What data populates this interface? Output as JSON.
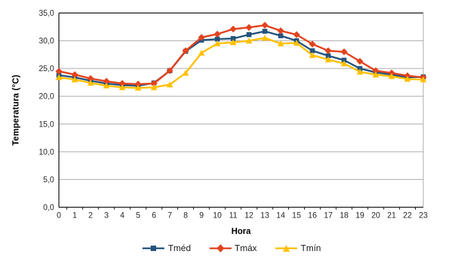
{
  "chart_data": {
    "type": "line",
    "x_categories": [
      "0",
      "1",
      "2",
      "3",
      "4",
      "5",
      "6",
      "7",
      "8",
      "9",
      "10",
      "11",
      "12",
      "13",
      "14",
      "15",
      "16",
      "17",
      "18",
      "19",
      "20",
      "21",
      "22",
      "23"
    ],
    "xlabel": "Hora",
    "ylabel": "Temperatura (°C)",
    "ylim": [
      0,
      35
    ],
    "y_tick_step": 5,
    "y_tick_labels": [
      "0,0",
      "5,0",
      "10,0",
      "15,0",
      "20,0",
      "25,0",
      "30,0",
      "35,0"
    ],
    "grid": true,
    "legend_position": "bottom",
    "series": [
      {
        "name": "Tméd",
        "marker": "square",
        "color": "#25537D",
        "values": [
          23.8,
          23.4,
          22.8,
          22.3,
          22.0,
          21.9,
          22.4,
          24.6,
          28.1,
          30.1,
          30.3,
          30.4,
          31.1,
          31.7,
          30.9,
          30.0,
          28.2,
          27.3,
          26.5,
          25.0,
          24.3,
          23.9,
          23.4,
          23.5
        ]
      },
      {
        "name": "Tmáx",
        "marker": "diamond",
        "color": "#E2431E",
        "values": [
          24.5,
          23.9,
          23.2,
          22.7,
          22.3,
          22.2,
          22.3,
          24.6,
          28.2,
          30.6,
          31.2,
          32.1,
          32.4,
          32.8,
          31.8,
          31.1,
          29.4,
          28.2,
          28.0,
          26.3,
          24.6,
          24.2,
          23.7,
          23.4
        ]
      },
      {
        "name": "Tmín",
        "marker": "triangle",
        "color": "#FFC000",
        "values": [
          23.4,
          23.0,
          22.4,
          21.9,
          21.6,
          21.5,
          21.6,
          22.1,
          24.2,
          27.8,
          29.5,
          29.7,
          30.0,
          30.5,
          29.5,
          29.6,
          27.4,
          26.6,
          25.9,
          24.4,
          23.9,
          23.6,
          23.1,
          23.0
        ]
      }
    ]
  },
  "colors": {
    "gridline": "#A6A6A6",
    "axis_line": "#000000",
    "right_border": "#A6A6A6",
    "tick_text": "#262626"
  }
}
